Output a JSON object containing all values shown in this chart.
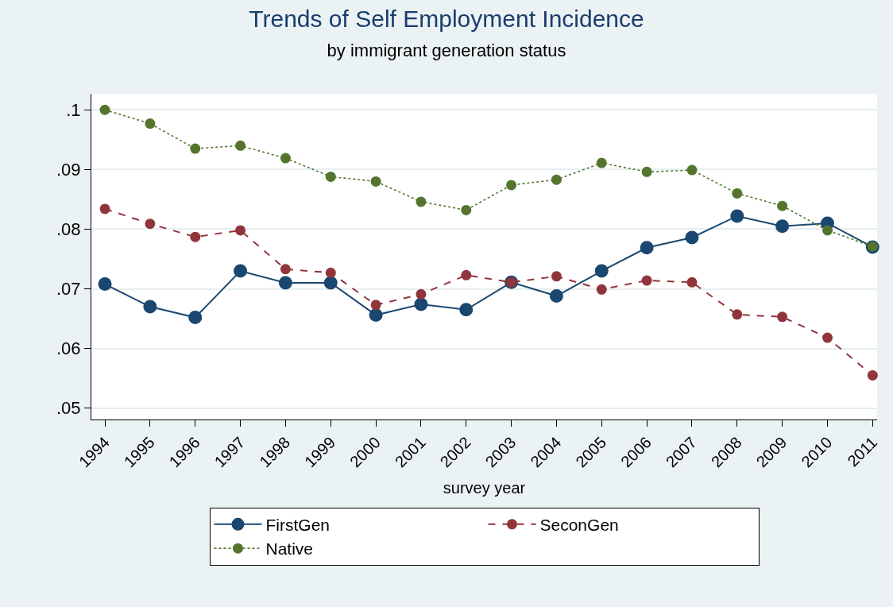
{
  "chart_data": {
    "type": "line",
    "title": "Trends of Self Employment Incidence",
    "subtitle": "by immigrant generation status",
    "xlabel": "survey year",
    "categories": [
      "1994",
      "1995",
      "1996",
      "1997",
      "1998",
      "1999",
      "2000",
      "2001",
      "2002",
      "2003",
      "2004",
      "2005",
      "2006",
      "2007",
      "2008",
      "2009",
      "2010",
      "2011"
    ],
    "series": [
      {
        "name": "FirstGen",
        "color": "#1a476f",
        "line_style": "solid",
        "values": [
          0.0708,
          0.067,
          0.0652,
          0.073,
          0.071,
          0.071,
          0.0656,
          0.0674,
          0.0665,
          0.0711,
          0.0688,
          0.073,
          0.0769,
          0.0786,
          0.0822,
          0.0805,
          0.081,
          0.077
        ]
      },
      {
        "name": "SeconGen",
        "color": "#90353b",
        "line_style": "dashed",
        "values": [
          0.0834,
          0.0809,
          0.0787,
          0.0798,
          0.0733,
          0.0727,
          0.0673,
          0.0691,
          0.0723,
          0.0711,
          0.0721,
          0.0699,
          0.0714,
          0.0711,
          0.0657,
          0.0653,
          0.0618,
          0.0555
        ]
      },
      {
        "name": "Native",
        "color": "#55752f",
        "line_style": "dotted",
        "values": [
          0.1,
          0.0977,
          0.0935,
          0.094,
          0.0919,
          0.0888,
          0.088,
          0.0846,
          0.0832,
          0.0874,
          0.0883,
          0.0911,
          0.0896,
          0.0899,
          0.086,
          0.0839,
          0.0798,
          0.0771
        ]
      }
    ],
    "ylim": [
      0.0481,
      0.1027
    ],
    "yticks": [
      {
        "value": 0.05,
        "label": ".05"
      },
      {
        "value": 0.06,
        "label": ".06"
      },
      {
        "value": 0.07,
        "label": ".07"
      },
      {
        "value": 0.08,
        "label": ".08"
      },
      {
        "value": 0.09,
        "label": ".09"
      },
      {
        "value": 0.1,
        "label": ".1"
      }
    ],
    "grid": "y",
    "legend": "bottom",
    "marker": "circle"
  }
}
